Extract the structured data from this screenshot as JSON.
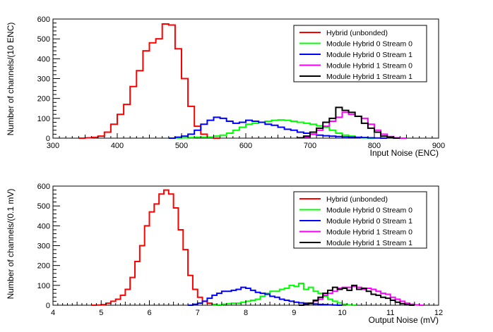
{
  "chart_data": [
    {
      "type": "step",
      "xlabel": "Input Noise (ENC)",
      "ylabel": "Number of channels/(10 ENC)",
      "xlim": [
        300,
        900
      ],
      "ylim": [
        0,
        600
      ],
      "xticks": [
        300,
        400,
        500,
        600,
        700,
        800,
        900
      ],
      "yticks": [
        0,
        100,
        200,
        300,
        400,
        500,
        600
      ],
      "legend_position": "top-right",
      "legend": [
        "Hybrid (unbonded)",
        "Module Hybrid 0 Stream 0",
        "Module Hybrid 0 Stream 1",
        "Module Hybrid 1 Stream 0",
        "Module Hybrid 1 Stream 1"
      ],
      "series": [
        {
          "name": "Hybrid (unbonded)",
          "color": "#ff0000",
          "x0": 340,
          "bin": 10,
          "values": [
            0,
            2,
            4,
            10,
            30,
            70,
            120,
            170,
            260,
            340,
            440,
            480,
            500,
            575,
            570,
            450,
            300,
            160,
            60,
            20,
            5,
            0
          ]
        },
        {
          "name": "Module Hybrid 0 Stream 0",
          "color": "#00ff00",
          "x0": 480,
          "bin": 10,
          "values": [
            0,
            1,
            2,
            3,
            5,
            5,
            5,
            10,
            15,
            25,
            40,
            55,
            70,
            75,
            80,
            85,
            90,
            92,
            90,
            85,
            80,
            75,
            70,
            62,
            55,
            40,
            25,
            15,
            10,
            5,
            2,
            0
          ]
        },
        {
          "name": "Module Hybrid 0 Stream 1",
          "color": "#0000ff",
          "x0": 480,
          "bin": 10,
          "values": [
            0,
            5,
            10,
            20,
            40,
            70,
            90,
            105,
            100,
            85,
            75,
            80,
            90,
            85,
            80,
            70,
            65,
            55,
            45,
            40,
            30,
            25,
            20,
            15,
            12,
            10,
            8,
            6,
            5,
            4,
            3,
            2,
            1,
            0
          ]
        },
        {
          "name": "Module Hybrid 1 Stream 0",
          "color": "#ff00ff",
          "x0": 690,
          "bin": 10,
          "values": [
            5,
            20,
            40,
            60,
            85,
            105,
            130,
            120,
            110,
            100,
            70,
            40,
            20,
            8,
            2,
            0
          ]
        },
        {
          "name": "Module Hybrid 1 Stream 1",
          "color": "#000000",
          "x0": 680,
          "bin": 10,
          "values": [
            2,
            10,
            30,
            50,
            80,
            100,
            155,
            140,
            130,
            110,
            75,
            50,
            30,
            10,
            5,
            0
          ]
        }
      ]
    },
    {
      "type": "step",
      "xlabel": "Output Noise (mV)",
      "ylabel": "Number of channels/(0.1 mV)",
      "xlim": [
        4,
        12
      ],
      "ylim": [
        0,
        600
      ],
      "xticks": [
        4,
        5,
        6,
        7,
        8,
        9,
        10,
        11,
        12
      ],
      "yticks": [
        0,
        100,
        200,
        300,
        400,
        500,
        600
      ],
      "legend_position": "top-right",
      "legend": [
        "Hybrid (unbonded)",
        "Module Hybrid 0 Stream 0",
        "Module Hybrid 0 Stream 1",
        "Module Hybrid 1 Stream 0",
        "Module Hybrid 1 Stream 1"
      ],
      "series": [
        {
          "name": "Hybrid (unbonded)",
          "color": "#ff0000",
          "x0": 4.8,
          "bin": 0.1,
          "values": [
            0,
            1,
            3,
            10,
            20,
            30,
            50,
            80,
            140,
            220,
            300,
            400,
            470,
            510,
            560,
            580,
            560,
            490,
            380,
            280,
            150,
            80,
            40,
            20,
            10,
            3,
            0
          ]
        },
        {
          "name": "Module Hybrid 0 Stream 0",
          "color": "#00ff00",
          "x0": 7.3,
          "bin": 0.1,
          "values": [
            0,
            2,
            5,
            8,
            10,
            10,
            15,
            20,
            25,
            30,
            45,
            60,
            70,
            70,
            80,
            85,
            100,
            95,
            110,
            80,
            90,
            70,
            60,
            45,
            30,
            20,
            12,
            5,
            2,
            0
          ]
        },
        {
          "name": "Module Hybrid 0 Stream 1",
          "color": "#0000ff",
          "x0": 6.8,
          "bin": 0.1,
          "values": [
            0,
            5,
            10,
            20,
            35,
            50,
            60,
            70,
            70,
            75,
            80,
            90,
            85,
            75,
            65,
            60,
            55,
            45,
            40,
            30,
            25,
            20,
            15,
            12,
            10,
            8,
            6,
            4,
            3,
            2,
            1,
            0
          ]
        },
        {
          "name": "Module Hybrid 1 Stream 0",
          "color": "#ff00ff",
          "x0": 9.1,
          "bin": 0.1,
          "values": [
            0,
            5,
            10,
            20,
            30,
            50,
            60,
            70,
            85,
            90,
            90,
            95,
            90,
            80,
            85,
            80,
            70,
            60,
            55,
            40,
            30,
            20,
            10,
            5,
            2,
            0
          ]
        },
        {
          "name": "Module Hybrid 1 Stream 1",
          "color": "#000000",
          "x0": 9.1,
          "bin": 0.1,
          "values": [
            0,
            5,
            10,
            25,
            40,
            60,
            75,
            90,
            80,
            85,
            75,
            100,
            80,
            85,
            70,
            55,
            50,
            40,
            35,
            25,
            15,
            8,
            3,
            0
          ]
        }
      ]
    }
  ]
}
